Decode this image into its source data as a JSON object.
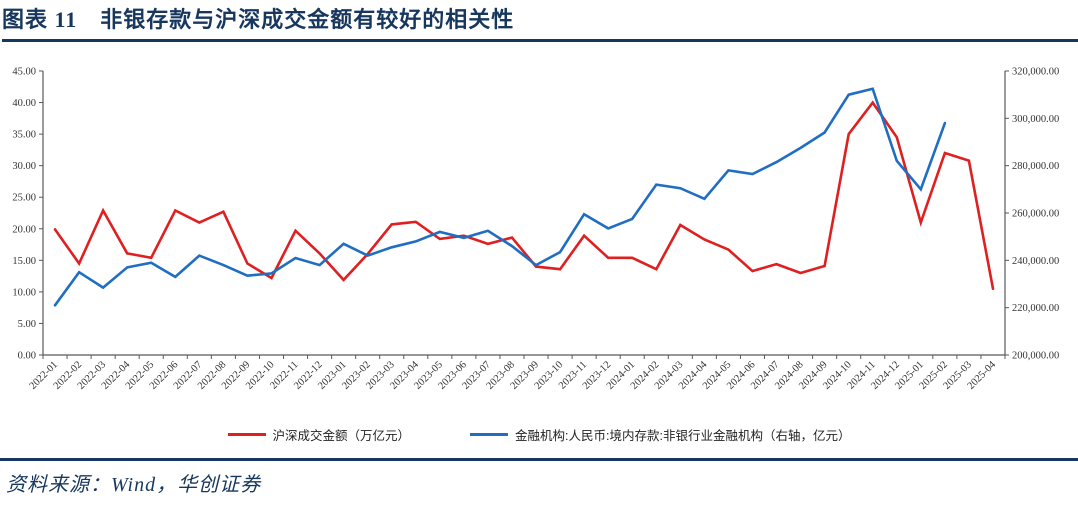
{
  "header": {
    "title": "图表 11　非银存款与沪深成交金额有较好的相关性"
  },
  "footer": {
    "source": "资料来源：Wind，华创证券"
  },
  "colors": {
    "accent_navy": "#17375E",
    "red_line": "#DF2020",
    "blue_line": "#1F6EC1",
    "axis": "#595959",
    "tick_text": "#333333"
  },
  "chart_data": {
    "type": "line",
    "title": "",
    "grid": false,
    "legend_position": "bottom",
    "categories": [
      "2022-01",
      "2022-02",
      "2022-03",
      "2022-04",
      "2022-05",
      "2022-06",
      "2022-07",
      "2022-08",
      "2022-09",
      "2022-10",
      "2022-11",
      "2022-12",
      "2023-01",
      "2023-02",
      "2023-03",
      "2023-04",
      "2023-05",
      "2023-06",
      "2023-07",
      "2023-08",
      "2023-09",
      "2023-10",
      "2023-11",
      "2023-12",
      "2024-01",
      "2024-02",
      "2024-03",
      "2024-04",
      "2024-05",
      "2024-06",
      "2024-07",
      "2024-08",
      "2024-09",
      "2024-10",
      "2024-11",
      "2024-12",
      "2025-01",
      "2025-02",
      "2025-03",
      "2025-04"
    ],
    "series": [
      {
        "name": "沪深成交金额（万亿元）",
        "axis": "left",
        "color": "#DF2020",
        "values": [
          19.9,
          14.5,
          22.9,
          16.1,
          15.4,
          22.9,
          21.0,
          22.7,
          14.5,
          12.2,
          19.7,
          16.1,
          11.9,
          16.0,
          20.7,
          21.1,
          18.4,
          18.9,
          17.6,
          18.6,
          14.0,
          13.6,
          18.9,
          15.4,
          15.4,
          13.6,
          20.6,
          18.3,
          16.7,
          13.3,
          14.4,
          13.0,
          14.1,
          35.0,
          40.0,
          34.5,
          21.0,
          32.0,
          30.8,
          10.5
        ]
      },
      {
        "name": "金融机构:人民币:境内存款:非银行业金融机构（右轴，亿元）",
        "axis": "right",
        "color": "#1F6EC1",
        "values": [
          221000,
          235000,
          228500,
          237000,
          239000,
          233000,
          242000,
          238000,
          233500,
          234500,
          241000,
          238000,
          247000,
          242000,
          245500,
          248000,
          252000,
          249500,
          252500,
          246000,
          238000,
          243500,
          259500,
          253500,
          257500,
          272000,
          270500,
          266000,
          278000,
          276500,
          281500,
          287500,
          294000,
          310000,
          312500,
          282000,
          270000,
          298000,
          null,
          null
        ]
      }
    ],
    "left_axis": {
      "min": 0,
      "max": 45,
      "step": 5,
      "tick_labels": [
        "0.00",
        "5.00",
        "10.00",
        "15.00",
        "20.00",
        "25.00",
        "30.00",
        "35.00",
        "40.00",
        "45.00"
      ]
    },
    "right_axis": {
      "min": 200000,
      "max": 320000,
      "step": 20000,
      "tick_labels": [
        "200,000.00",
        "220,000.00",
        "240,000.00",
        "260,000.00",
        "280,000.00",
        "300,000.00",
        "320,000.00"
      ]
    }
  }
}
